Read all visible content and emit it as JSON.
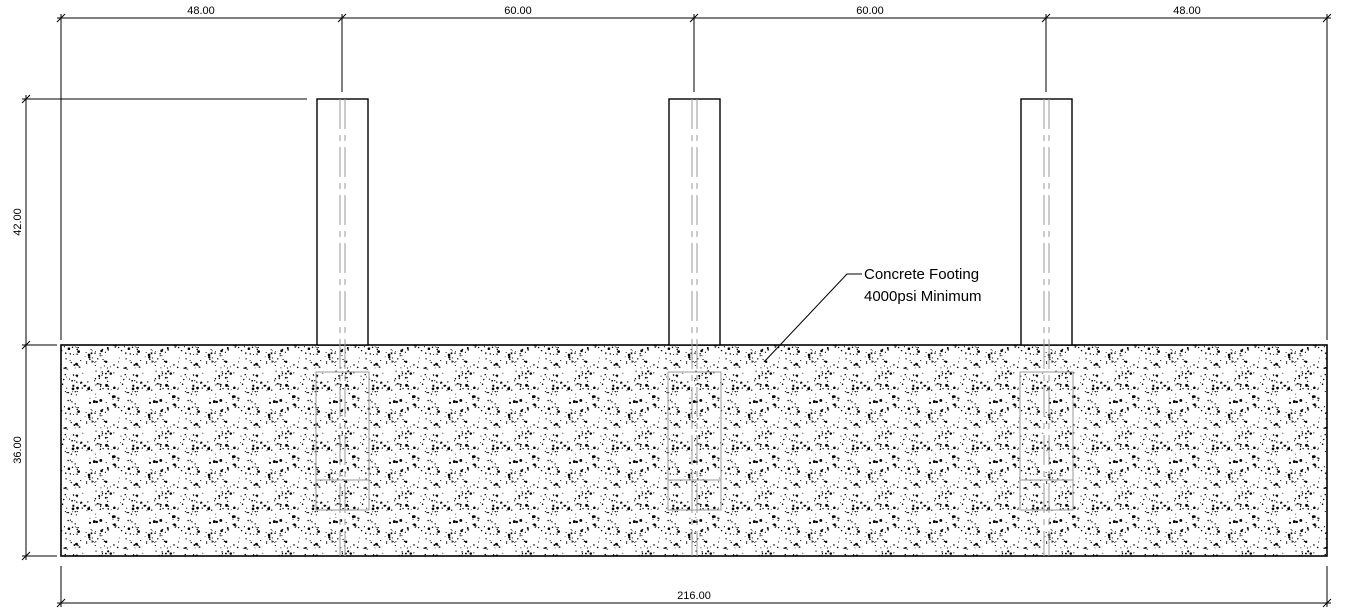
{
  "dimensions": {
    "top": [
      "48.00",
      "60.00",
      "60.00",
      "48.00"
    ],
    "post_height": "42.00",
    "footing_depth": "36.00",
    "overall_width": "216.00"
  },
  "callout": {
    "line1": "Concrete Footing",
    "line2": "4000psi Minimum"
  },
  "hatch": "concrete-stipple",
  "post_count": 3
}
